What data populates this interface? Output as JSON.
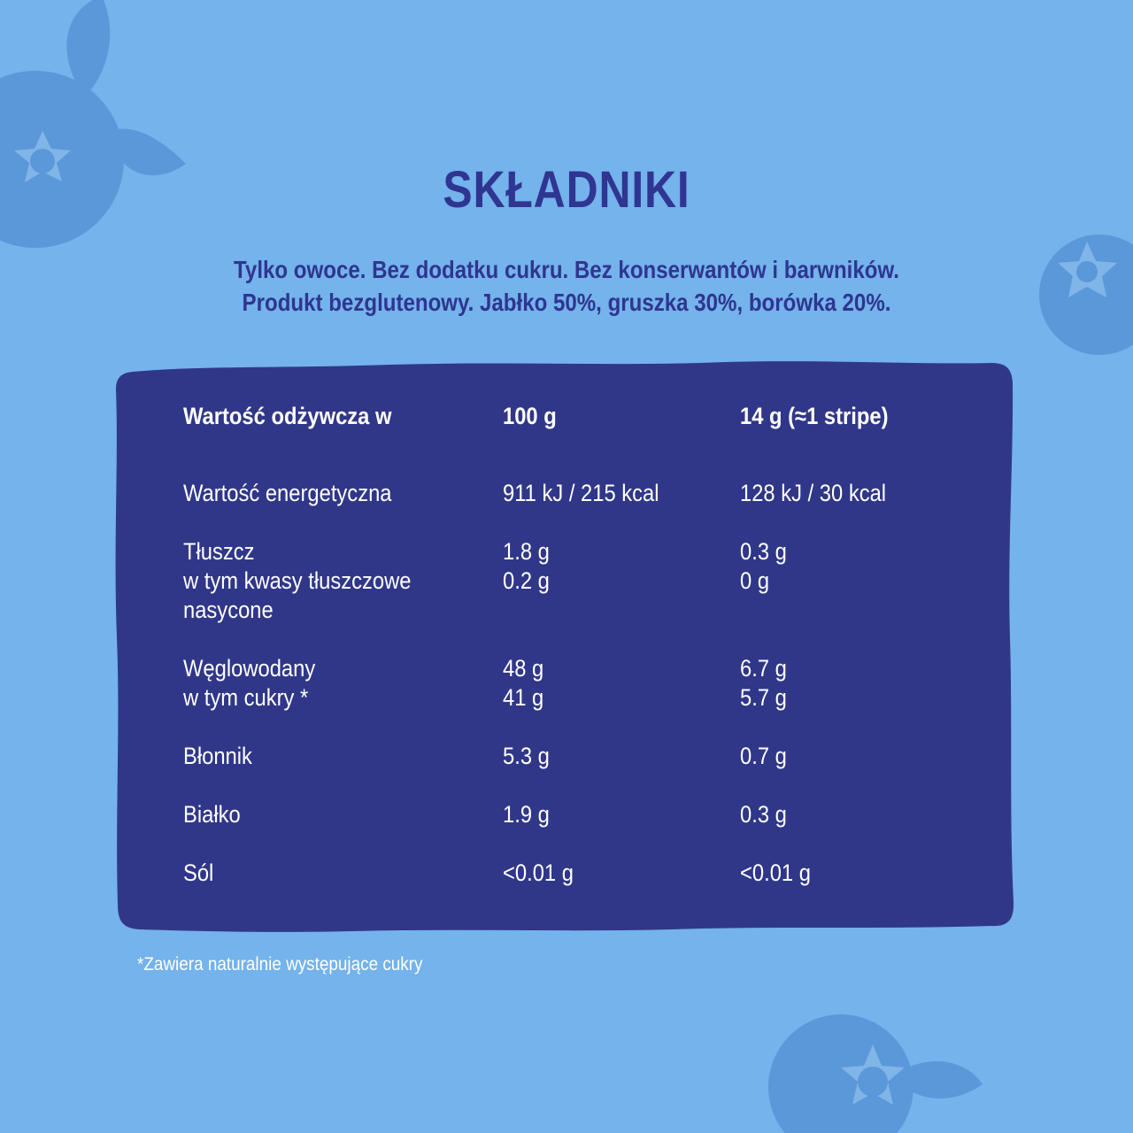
{
  "page": {
    "background_color": "#74b3eb",
    "title_color": "#2f3590",
    "panel_color": "#303789",
    "decor_color": "#5b98da"
  },
  "title": "SKŁADNIKI",
  "subtitle": {
    "line1": "Tylko owoce. Bez dodatku cukru. Bez konserwantów i barwników.",
    "line2": "Produkt bezglutenowy. Jabłko 50%, gruszka 30%, borówka 20%."
  },
  "nutrition_table": {
    "headers": {
      "label": "Wartość odżywcza w",
      "per_100g": "100 g",
      "per_portion": "14 g (≈1 stripe)"
    },
    "rows": [
      {
        "label": "Wartość energetyczna",
        "per_100g": "911 kJ / 215 kcal",
        "per_portion": "128 kJ / 30 kcal"
      },
      {
        "label": "Tłuszcz",
        "per_100g": "1.8 g",
        "per_portion": "0.3 g"
      },
      {
        "label": "w tym kwasy tłuszczowe",
        "per_100g": "0.2 g",
        "per_portion": "0 g"
      },
      {
        "label": "nasycone",
        "per_100g": "",
        "per_portion": ""
      },
      {
        "label": "Węglowodany",
        "per_100g": "48 g",
        "per_portion": "6.7 g"
      },
      {
        "label": "w tym cukry *",
        "per_100g": "41 g",
        "per_portion": "5.7 g"
      },
      {
        "label": "Błonnik",
        "per_100g": "5.3 g",
        "per_portion": "0.7 g"
      },
      {
        "label": "Białko",
        "per_100g": "1.9 g",
        "per_portion": "0.3 g"
      },
      {
        "label": "Sól",
        "per_100g": "<0.01 g",
        "per_portion": "<0.01 g"
      }
    ]
  },
  "footnote": "*Zawiera naturalnie występujące cukry",
  "decorations": [
    "blueberry-icon",
    "blueberry-icon",
    "blueberry-icon"
  ]
}
